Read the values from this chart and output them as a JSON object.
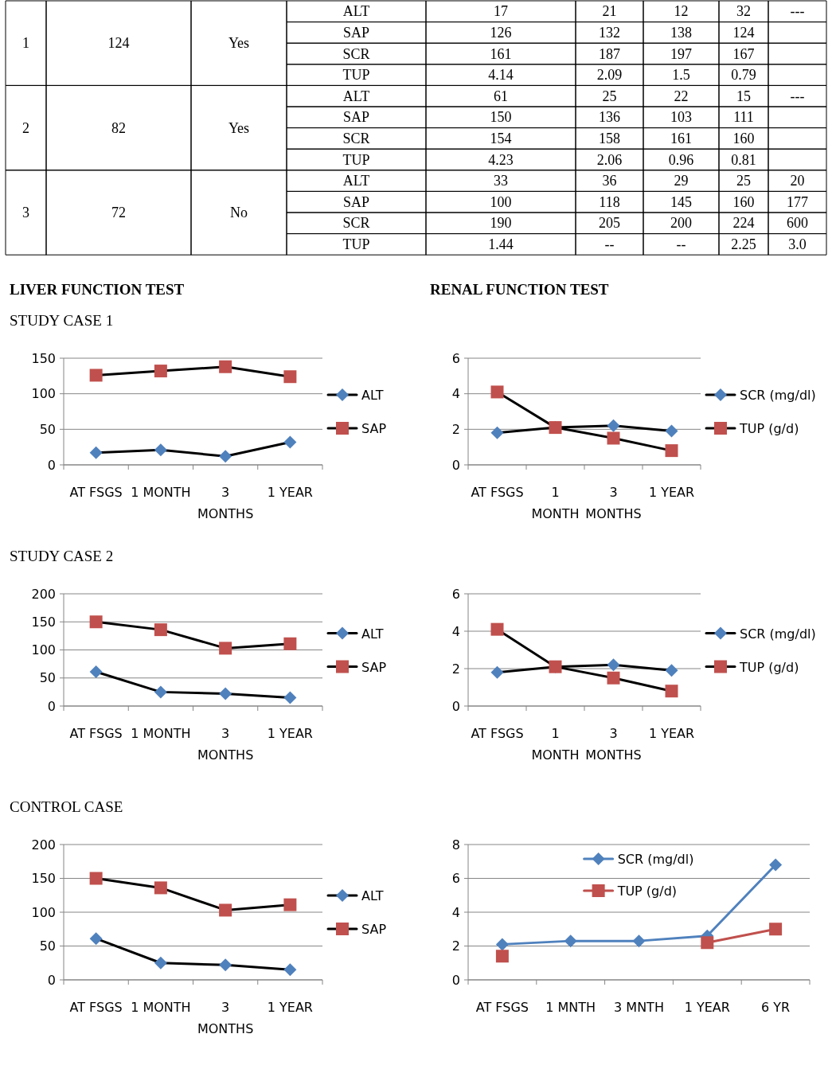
{
  "chart_data": [
    {
      "type": "other",
      "cells": [
        [
          "1",
          "124",
          "Yes",
          "ALT",
          "17",
          "21",
          "12",
          "32",
          "---"
        ],
        [
          null,
          null,
          null,
          "SAP",
          "126",
          "132",
          "138",
          "124"
        ],
        [
          null,
          null,
          null,
          "SCR",
          "161",
          "187",
          "197",
          "167"
        ],
        [
          null,
          null,
          null,
          "TUP",
          "4.14",
          "2.09",
          "1.5",
          "0.79"
        ],
        [
          "2",
          "82",
          "Yes",
          "ALT",
          "61",
          "25",
          "22",
          "15",
          "---"
        ],
        [
          null,
          null,
          null,
          "SAP",
          "150",
          "136",
          "103",
          "111"
        ],
        [
          null,
          null,
          null,
          "SCR",
          "154",
          "158",
          "161",
          "160"
        ],
        [
          null,
          null,
          null,
          "TUP",
          "4.23",
          "2.06",
          "0.96",
          "0.81"
        ],
        [
          "3",
          "72",
          "No",
          "ALT",
          "33",
          "36",
          "29",
          "25",
          "20"
        ],
        [
          null,
          null,
          null,
          "SAP",
          "100",
          "118",
          "145",
          "160",
          "177"
        ],
        [
          null,
          null,
          null,
          "SCR",
          "190",
          "205",
          "200",
          "224",
          "600"
        ],
        [
          null,
          null,
          null,
          "TUP",
          "1.44",
          "--",
          "--",
          "2.25",
          "3.0"
        ]
      ]
    },
    {
      "type": "line",
      "title": "LIVER FUNCTION TEST",
      "subtitle": "STUDY CASE 1",
      "categories": [
        "AT FSGS",
        "1 MONTH",
        "3 MONTHS",
        "1 YEAR"
      ],
      "series": [
        {
          "name": "ALT",
          "color": "#000000",
          "colors": [
            "#4f81bd",
            "#4f81bd",
            "#4f81bd",
            "#4f81bd"
          ],
          "marker": "diamond",
          "values": [
            17,
            21,
            12,
            32
          ]
        },
        {
          "name": "SAP",
          "color": "#000000",
          "colors": [
            "#c0504d",
            "#c0504d",
            "#c0504d",
            "#c0504d"
          ],
          "marker": "square",
          "values": [
            126,
            132,
            138,
            124
          ]
        }
      ],
      "ylim": [
        0,
        150
      ],
      "yticks": [
        0,
        50,
        100,
        150
      ],
      "grid": "y",
      "legend": "right"
    },
    {
      "type": "line",
      "title": "RENAL FUNCTION TEST",
      "categories": [
        "AT FSGS",
        "1 MONTH",
        "3 MONTHS",
        "1 YEAR"
      ],
      "series": [
        {
          "name": "SCR (mg/dl)",
          "color": "#000000",
          "colors": [
            "#4f81bd",
            "#4f81bd",
            "#4f81bd",
            "#4f81bd"
          ],
          "marker": "diamond",
          "values": [
            1.8,
            2.1,
            2.2,
            1.9
          ]
        },
        {
          "name": "TUP (g/d)",
          "color": "#000000",
          "colors": [
            "#c0504d",
            "#c0504d",
            "#c0504d",
            "#c0504d"
          ],
          "marker": "square",
          "values": [
            4.1,
            2.1,
            1.5,
            0.8
          ]
        }
      ],
      "ylim": [
        0,
        6
      ],
      "yticks": [
        0,
        2,
        4,
        6
      ],
      "grid": "y",
      "legend": "right"
    },
    {
      "type": "line",
      "subtitle": "STUDY CASE 2",
      "categories": [
        "AT FSGS",
        "1 MONTH",
        "3 MONTHS",
        "1 YEAR"
      ],
      "series": [
        {
          "name": "ALT",
          "color": "#000000",
          "colors": [
            "#4f81bd",
            "#4f81bd",
            "#4f81bd",
            "#4f81bd"
          ],
          "marker": "diamond",
          "values": [
            61,
            25,
            22,
            15
          ]
        },
        {
          "name": "SAP",
          "color": "#000000",
          "colors": [
            "#c0504d",
            "#c0504d",
            "#c0504d",
            "#c0504d"
          ],
          "marker": "square",
          "values": [
            150,
            136,
            103,
            111
          ]
        }
      ],
      "ylim": [
        0,
        200
      ],
      "yticks": [
        0,
        50,
        100,
        150,
        200
      ],
      "grid": "y",
      "legend": "right"
    },
    {
      "type": "line",
      "categories": [
        "AT FSGS",
        "1 MONTH",
        "3 MONTHS",
        "1 YEAR"
      ],
      "series": [
        {
          "name": "SCR (mg/dl)",
          "color": "#000000",
          "colors": [
            "#4f81bd",
            "#4f81bd",
            "#4f81bd",
            "#4f81bd"
          ],
          "marker": "diamond",
          "values": [
            1.8,
            2.1,
            2.2,
            1.9
          ]
        },
        {
          "name": "TUP (g/d)",
          "color": "#000000",
          "colors": [
            "#c0504d",
            "#c0504d",
            "#c0504d",
            "#c0504d"
          ],
          "marker": "square",
          "values": [
            4.1,
            2.1,
            1.5,
            0.8
          ]
        }
      ],
      "ylim": [
        0,
        6
      ],
      "yticks": [
        0,
        2,
        4,
        6
      ],
      "grid": "y",
      "legend": "right"
    },
    {
      "type": "line",
      "subtitle": "CONTROL CASE",
      "categories": [
        "AT FSGS",
        "1 MONTH",
        "3 MONTHS",
        "1 YEAR"
      ],
      "series": [
        {
          "name": "ALT",
          "color": "#000000",
          "colors": [
            "#4f81bd",
            "#4f81bd",
            "#4f81bd",
            "#4f81bd"
          ],
          "marker": "diamond",
          "values": [
            61,
            25,
            22,
            15
          ]
        },
        {
          "name": "SAP",
          "color": "#000000",
          "colors": [
            "#c0504d",
            "#c0504d",
            "#c0504d",
            "#c0504d"
          ],
          "marker": "square",
          "values": [
            150,
            136,
            103,
            111
          ]
        }
      ],
      "ylim": [
        0,
        200
      ],
      "yticks": [
        0,
        50,
        100,
        150,
        200
      ],
      "grid": "y",
      "legend": "right"
    },
    {
      "type": "line",
      "categories": [
        "AT FSGS",
        "1 MNTH",
        "3 MNTH",
        "1 YEAR",
        "6 YR"
      ],
      "series": [
        {
          "name": "SCR (mg/dl)",
          "color": "#4f81bd",
          "marker": "diamond",
          "values": [
            2.1,
            2.3,
            2.3,
            2.6,
            6.8
          ]
        },
        {
          "name": "TUP (g/d)",
          "color": "#c0504d",
          "marker": "square",
          "values": [
            1.4,
            null,
            null,
            2.2,
            3
          ]
        }
      ],
      "ylim": [
        0,
        8
      ],
      "yticks": [
        0,
        2,
        4,
        6,
        8
      ],
      "grid": "y",
      "legend": "top"
    }
  ]
}
